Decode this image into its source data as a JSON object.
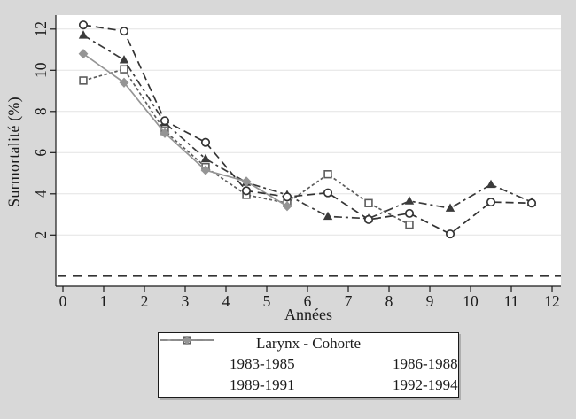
{
  "chart_data": {
    "type": "line",
    "title": "",
    "xlabel": "Années",
    "ylabel": "Surmortalité (%)",
    "xlim": [
      -0.174,
      12.217
    ],
    "ylim": [
      -0.482,
      12.68
    ],
    "xticks": [
      0,
      1,
      2,
      3,
      4,
      5,
      6,
      7,
      8,
      9,
      10,
      11,
      12
    ],
    "yticks": [
      2,
      4,
      6,
      8,
      10,
      12
    ],
    "grid": "horizontal-only",
    "legend": {
      "title": "Larynx - Cohorte",
      "position": "bottom-outside"
    },
    "reference_line": {
      "y": 0,
      "linestyle": "longdash",
      "color": "#333333"
    },
    "series": [
      {
        "name": "1983-1985",
        "marker": "circle",
        "marker_fill": "hollow",
        "linestyle": "longdash",
        "color": "#333333",
        "x": [
          0.5,
          1.5,
          2.5,
          3.5,
          4.5,
          5.5,
          6.5,
          7.5,
          8.5,
          9.5,
          10.5,
          11.5
        ],
        "y": [
          12.2,
          11.9,
          7.55,
          6.5,
          4.15,
          3.85,
          4.05,
          2.75,
          3.05,
          2.05,
          3.6,
          3.55
        ]
      },
      {
        "name": "1986-1988",
        "marker": "triangle",
        "marker_fill": "solid",
        "linestyle": "dashdot",
        "color": "#3b3b3b",
        "x": [
          0.5,
          1.5,
          2.5,
          3.5,
          4.5,
          5.5,
          6.5,
          7.5,
          8.5,
          9.5,
          10.5,
          11.5
        ],
        "y": [
          11.7,
          10.5,
          7.45,
          5.7,
          4.55,
          3.95,
          2.9,
          2.8,
          3.65,
          3.3,
          4.45,
          3.6
        ]
      },
      {
        "name": "1989-1991",
        "marker": "square",
        "marker_fill": "hollow",
        "linestyle": "dash",
        "color": "#5c5c5c",
        "x": [
          0.5,
          1.5,
          2.5,
          3.5,
          4.5,
          5.5,
          6.5,
          7.5,
          8.5
        ],
        "y": [
          9.5,
          10.05,
          7.05,
          5.3,
          3.95,
          3.55,
          4.95,
          3.55,
          2.5
        ]
      },
      {
        "name": "1992-1994",
        "marker": "diamond",
        "marker_fill": "solid",
        "linestyle": "solid",
        "color": "#959595",
        "x": [
          0.5,
          1.5,
          2.5,
          3.5,
          4.5,
          5.5
        ],
        "y": [
          10.8,
          9.4,
          6.95,
          5.15,
          4.6,
          3.4
        ]
      }
    ]
  },
  "style": {
    "background": "#d8d8d8",
    "plot_background": "#ffffff",
    "gridline_color": "#e4e4e4",
    "axis_color": "#1a1a1a"
  }
}
